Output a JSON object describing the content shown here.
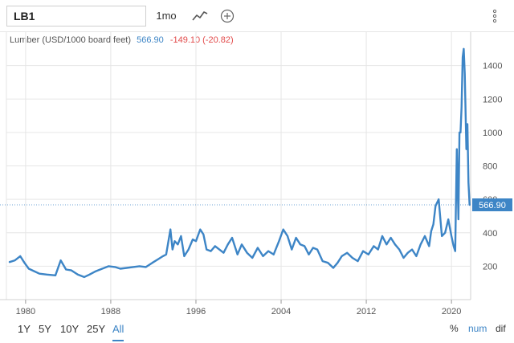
{
  "toolbar": {
    "symbol": "LB1",
    "period": "1mo",
    "chart_type_icon": "line-chart-icon",
    "add_icon": "plus-circle-icon",
    "menu_icon": "vertical-dots-icon"
  },
  "legend": {
    "name": "Lumber (USD/1000 board feet)",
    "value": "566.90",
    "change": "-149.10 (-20.82)"
  },
  "last_price_label": "566.90",
  "ranges": [
    "1Y",
    "5Y",
    "10Y",
    "25Y",
    "All"
  ],
  "active_range": "All",
  "modes": [
    "%",
    "num",
    "dif"
  ],
  "active_mode": "num",
  "colors": {
    "line": "#3d85c6",
    "negative": "#e24b4b",
    "grid": "#e6e6e6"
  },
  "chart_data": {
    "type": "line",
    "title": "",
    "xlabel": "",
    "ylabel": "",
    "x_tick_labels": [
      "1980",
      "1988",
      "1996",
      "2004",
      "2012",
      "2020"
    ],
    "y_tick_labels": [
      "200",
      "400",
      "600",
      "800",
      "1000",
      "1200",
      "1400"
    ],
    "xlim": [
      1978.2,
      2021.8
    ],
    "ylim": [
      0,
      1600
    ],
    "grid": true,
    "last_value": 566.9,
    "series": [
      {
        "x": [
          1978.5,
          1979.0,
          1979.5,
          1979.9,
          1980.3,
          1980.8,
          1981.3,
          1982.0,
          1982.8,
          1983.3,
          1983.8,
          1984.3,
          1984.9,
          1985.5,
          1986.0,
          1986.6,
          1987.2,
          1987.8,
          1988.4,
          1988.9,
          1989.5,
          1990.1,
          1990.7,
          1991.3,
          1991.9,
          1992.4,
          1992.9,
          1993.2,
          1993.6,
          1993.8,
          1994.0,
          1994.3,
          1994.6,
          1994.9,
          1995.3,
          1995.7,
          1996.0,
          1996.4,
          1996.7,
          1997.0,
          1997.4,
          1997.8,
          1998.2,
          1998.6,
          1999.0,
          1999.4,
          1999.9,
          2000.3,
          2000.8,
          2001.3,
          2001.8,
          2002.3,
          2002.8,
          2003.3,
          2003.8,
          2004.2,
          2004.6,
          2005.0,
          2005.4,
          2005.8,
          2006.2,
          2006.6,
          2007.0,
          2007.4,
          2007.9,
          2008.4,
          2008.9,
          2009.3,
          2009.7,
          2010.2,
          2010.7,
          2011.2,
          2011.7,
          2012.2,
          2012.7,
          2013.1,
          2013.5,
          2013.9,
          2014.3,
          2014.7,
          2015.1,
          2015.5,
          2015.9,
          2016.3,
          2016.7,
          2017.1,
          2017.5,
          2017.9,
          2018.1,
          2018.3,
          2018.5,
          2018.8,
          2019.1,
          2019.4,
          2019.7,
          2020.0,
          2020.2,
          2020.35,
          2020.5,
          2020.65,
          2020.75,
          2020.85,
          2020.95,
          2021.05,
          2021.15,
          2021.25,
          2021.33,
          2021.4,
          2021.5,
          2021.6,
          2021.7
        ],
        "y": [
          225,
          235,
          260,
          220,
          185,
          170,
          155,
          150,
          145,
          235,
          180,
          175,
          150,
          135,
          150,
          170,
          185,
          200,
          195,
          185,
          190,
          195,
          200,
          195,
          220,
          240,
          260,
          270,
          420,
          300,
          350,
          330,
          380,
          260,
          300,
          360,
          350,
          420,
          390,
          300,
          290,
          320,
          300,
          280,
          330,
          370,
          270,
          330,
          280,
          250,
          310,
          260,
          290,
          270,
          350,
          420,
          380,
          300,
          370,
          330,
          320,
          270,
          310,
          300,
          230,
          220,
          190,
          220,
          260,
          280,
          250,
          230,
          290,
          270,
          320,
          300,
          380,
          330,
          370,
          330,
          300,
          250,
          280,
          300,
          260,
          330,
          380,
          320,
          410,
          450,
          560,
          600,
          380,
          400,
          480,
          380,
          320,
          290,
          900,
          480,
          1000,
          1000,
          1150,
          1450,
          1500,
          1350,
          1100,
          900,
          1050,
          700,
          567
        ]
      }
    ]
  }
}
